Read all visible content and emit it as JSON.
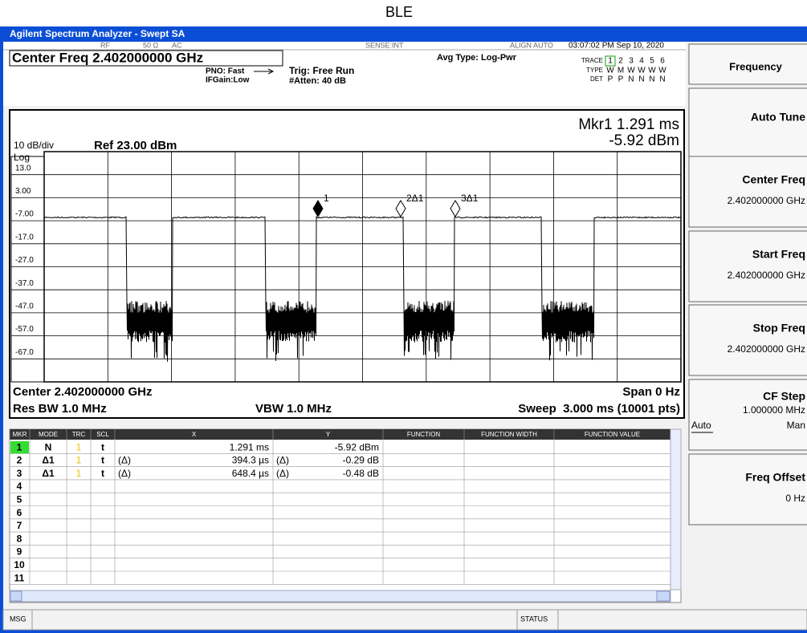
{
  "title": "BLE",
  "window": {
    "title": "Agilent Spectrum Analyzer - Swept SA"
  },
  "status_bar": {
    "rf": "RF",
    "impedance": "50 Ω",
    "coupling": "AC",
    "sense": "SENSE:INT",
    "align": "ALIGN AUTO",
    "datetime": "03:07:02 PM Sep 10, 2020"
  },
  "settings": {
    "center_freq": "Center Freq 2.402000000 GHz",
    "pno": "PNO: Fast",
    "ifgain": "IFGain:Low",
    "trig": "Trig: Free Run",
    "atten": "#Atten: 40 dB",
    "avg_type": "Avg Type: Log-Pwr",
    "trace_label": "TRACE",
    "trace": [
      "1",
      "2",
      "3",
      "4",
      "5",
      "6"
    ],
    "type_label": "TYPE",
    "type": [
      "W",
      "M",
      "W",
      "W",
      "W",
      "W"
    ],
    "det_label": "DET",
    "det": [
      "P",
      "P",
      "N",
      "N",
      "N",
      "N"
    ]
  },
  "plot": {
    "scale": "10 dB/div",
    "log": "Log",
    "ref": "Ref 23.00 dBm",
    "marker_readout": [
      "Mkr1 1.291 ms",
      "-5.92 dBm"
    ],
    "y_labels": [
      "13.0",
      "3.00",
      "-7.00",
      "-17.0",
      "-27.0",
      "-37.0",
      "-47.0",
      "-57.0",
      "-67.0"
    ],
    "markers": [
      "1",
      "2Δ1",
      "3Δ1"
    ],
    "center": "Center 2.402000000 GHz",
    "span": "Span 0 Hz",
    "res_bw": "Res BW 1.0 MHz",
    "vbw": "VBW 1.0 MHz",
    "sweep": "Sweep  3.000 ms (10001 pts)"
  },
  "marker_table": {
    "headers": [
      "MKR",
      "MODE",
      "TRC",
      "SCL",
      "X",
      "Y",
      "FUNCTION",
      "FUNCTION WIDTH",
      "FUNCTION VALUE"
    ],
    "rows": [
      {
        "mkr": "1",
        "mode": "N",
        "trc": "1",
        "scl": "t",
        "x": "1.291 ms",
        "y": "-5.92 dBm"
      },
      {
        "mkr": "2",
        "mode": "Δ1",
        "trc": "1",
        "scl": "t",
        "x_ref": "(Δ)",
        "x": "394.3 µs",
        "y_ref": "(Δ)",
        "y": "-0.29 dB"
      },
      {
        "mkr": "3",
        "mode": "Δ1",
        "trc": "1",
        "scl": "t",
        "x_ref": "(Δ)",
        "x": "648.4 µs",
        "y_ref": "(Δ)",
        "y": "-0.48 dB"
      },
      {
        "mkr": "4"
      },
      {
        "mkr": "5"
      },
      {
        "mkr": "6"
      },
      {
        "mkr": "7"
      },
      {
        "mkr": "8"
      },
      {
        "mkr": "9"
      },
      {
        "mkr": "10"
      },
      {
        "mkr": "11"
      }
    ]
  },
  "softkeys": {
    "menu": "Frequency",
    "keys": [
      {
        "label": "Auto Tune"
      },
      {
        "label": "Center Freq",
        "value": "2.402000000 GHz"
      },
      {
        "label": "Start Freq",
        "value": "2.402000000 GHz"
      },
      {
        "label": "Stop Freq",
        "value": "2.402000000 GHz"
      },
      {
        "label": "CF Step",
        "value": "1.000000 MHz",
        "options": [
          "Auto",
          "Man"
        ]
      },
      {
        "label": "Freq Offset",
        "value": "0 Hz"
      }
    ]
  },
  "footer": {
    "msg": "MSG",
    "status": "STATUS"
  }
}
